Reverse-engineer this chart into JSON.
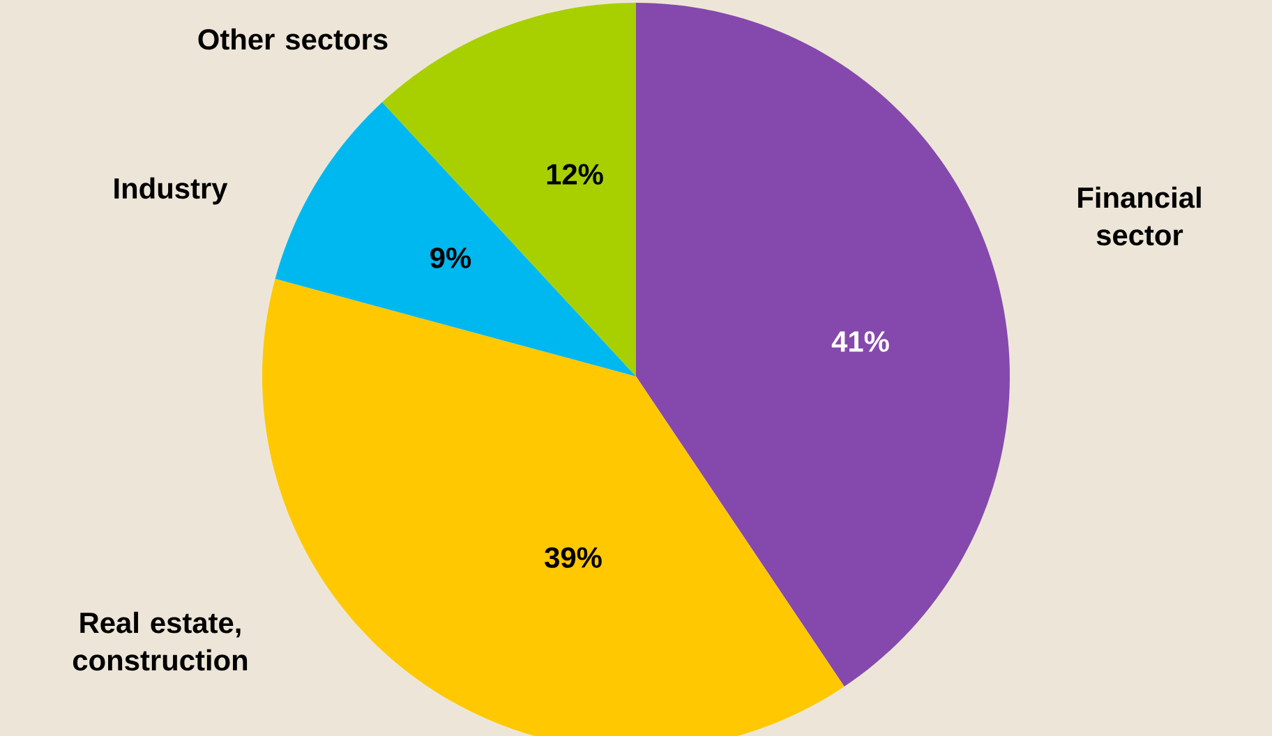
{
  "chart_data": {
    "type": "pie",
    "categories": [
      "Financial sector",
      "Real estate, construction",
      "Industry",
      "Other sectors"
    ],
    "values": [
      41,
      39,
      9,
      12
    ],
    "colors": [
      "#8549ad",
      "#ffc800",
      "#00b8f0",
      "#a8d000"
    ],
    "value_labels": [
      "41%",
      "39%",
      "9%",
      "12%"
    ]
  }
}
